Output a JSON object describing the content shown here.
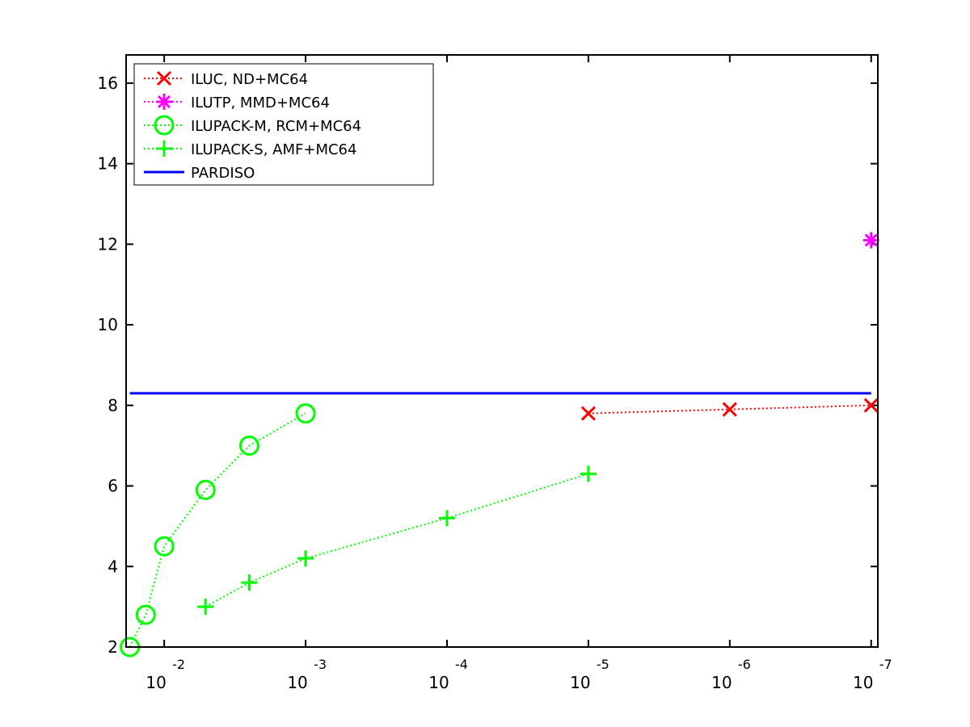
{
  "chart_data": {
    "type": "line",
    "xscale": "log-reversed",
    "x_ticks": [
      {
        "base": "10",
        "exp": "-2",
        "value": 0.01
      },
      {
        "base": "10",
        "exp": "-3",
        "value": 0.001
      },
      {
        "base": "10",
        "exp": "-4",
        "value": 0.0001
      },
      {
        "base": "10",
        "exp": "-5",
        "value": 1e-05
      },
      {
        "base": "10",
        "exp": "-6",
        "value": 1e-06
      },
      {
        "base": "10",
        "exp": "-7",
        "value": 1e-07
      }
    ],
    "xlim": [
      0.0186,
      8.97e-08
    ],
    "ylim": [
      2,
      16.7
    ],
    "y_ticks": [
      "2",
      "4",
      "6",
      "8",
      "10",
      "12",
      "14",
      "16"
    ],
    "grid": false,
    "legend_position": "top-left",
    "series": [
      {
        "name": "ILUC,  ND+MC64",
        "color": "#ff0000",
        "marker": "x",
        "line": "dotted",
        "points": [
          {
            "x": 1e-05,
            "y": 7.8
          },
          {
            "x": 1e-06,
            "y": 7.9
          },
          {
            "x": 1e-07,
            "y": 8.0
          }
        ]
      },
      {
        "name": "ILUTP, MMD+MC64",
        "color": "#ff00ff",
        "marker": "asterisk",
        "line": "dotted",
        "points": [
          {
            "x": 1e-07,
            "y": 12.1
          }
        ]
      },
      {
        "name": "ILUPACK-M, RCM+MC64",
        "color": "#00ff00",
        "marker": "circle",
        "line": "dotted",
        "points": [
          {
            "x": 0.0175,
            "y": 2.0
          },
          {
            "x": 0.0135,
            "y": 2.8
          },
          {
            "x": 0.01,
            "y": 4.5
          },
          {
            "x": 0.0051,
            "y": 5.9
          },
          {
            "x": 0.0025,
            "y": 7.0
          },
          {
            "x": 0.001,
            "y": 7.8
          }
        ]
      },
      {
        "name": "ILUPACK-S, AMF+MC64",
        "color": "#00ff00",
        "marker": "plus",
        "line": "dotted",
        "points": [
          {
            "x": 0.0051,
            "y": 3.0
          },
          {
            "x": 0.0025,
            "y": 3.6
          },
          {
            "x": 0.001,
            "y": 4.2
          },
          {
            "x": 0.0001,
            "y": 5.2
          },
          {
            "x": 1e-05,
            "y": 6.3
          }
        ]
      },
      {
        "name": "PARDISO",
        "color": "#0000ff",
        "marker": "none",
        "line": "solid",
        "points": [
          {
            "x": 0.0175,
            "y": 8.3
          },
          {
            "x": 1e-07,
            "y": 8.3
          }
        ]
      }
    ]
  }
}
